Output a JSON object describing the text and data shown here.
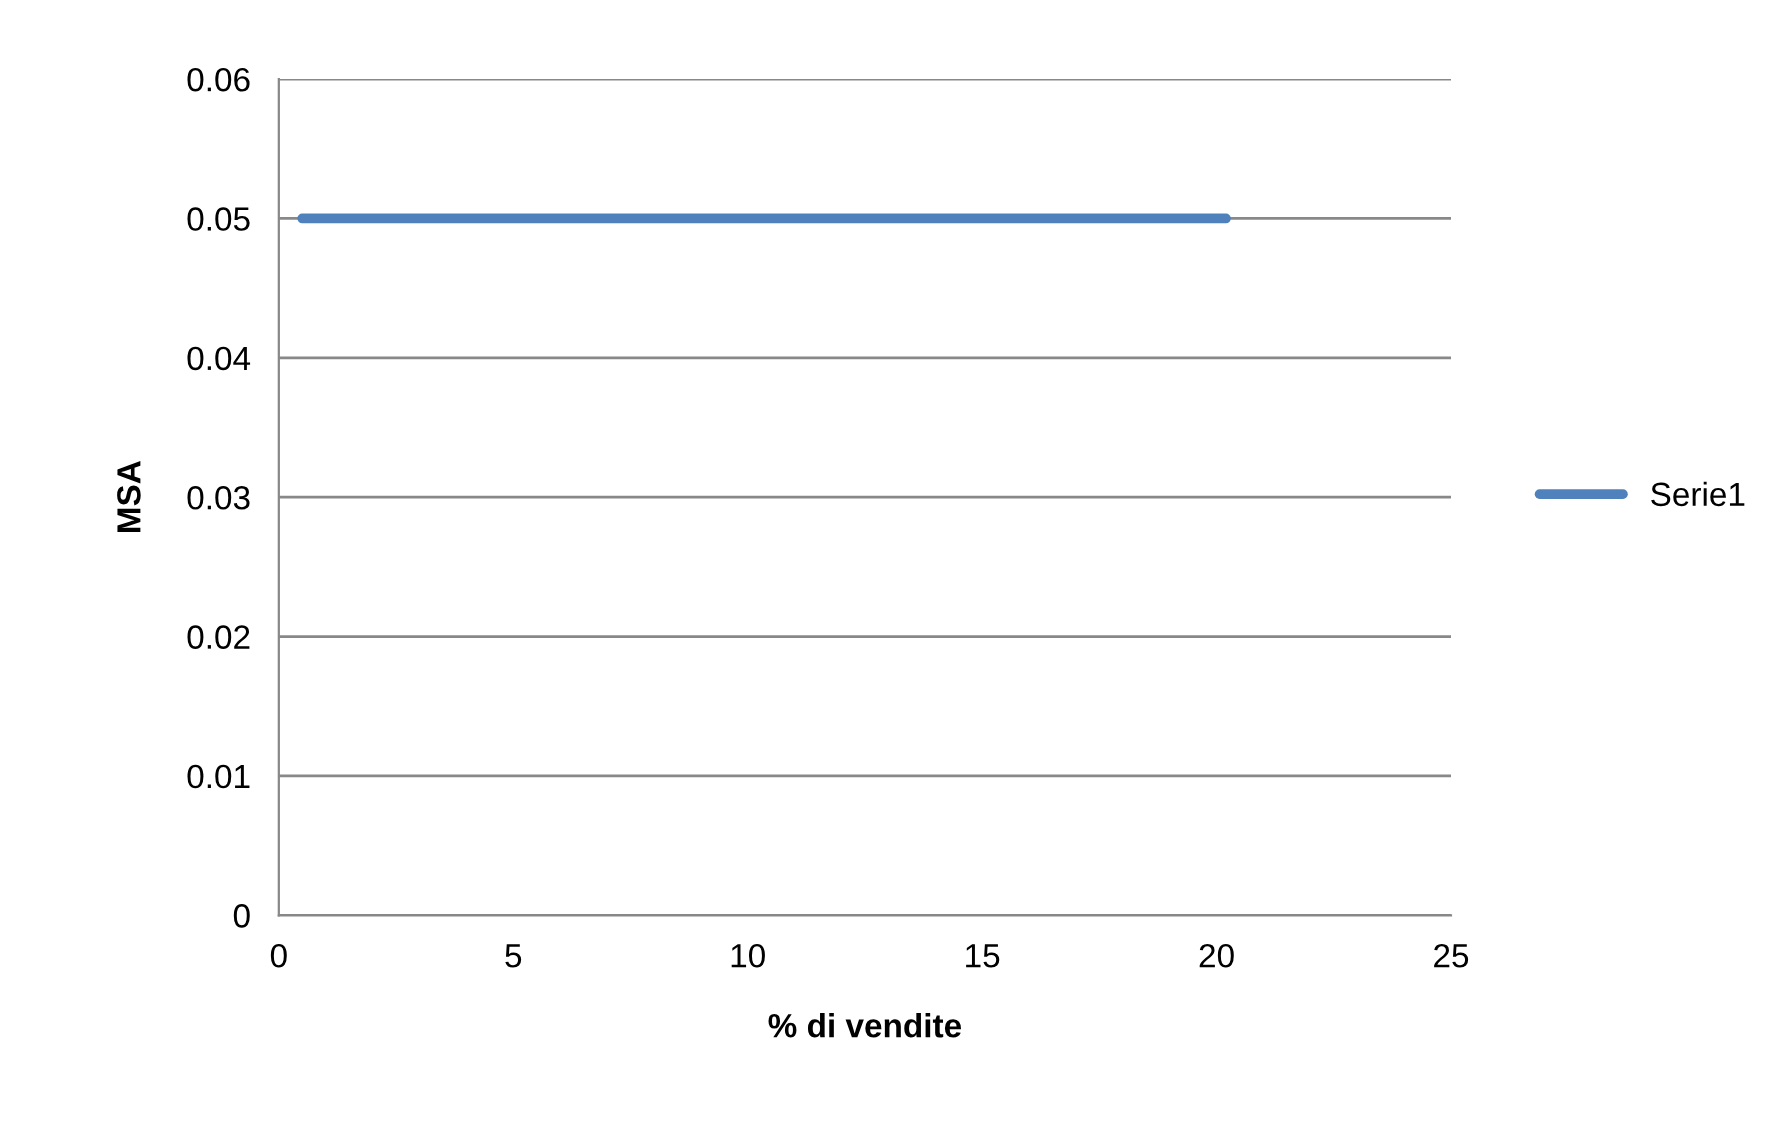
{
  "chart_data": {
    "type": "line",
    "xlabel": "% di vendite",
    "ylabel": "MSA",
    "series": [
      {
        "name": "Serie1",
        "color": "#4f81bd",
        "x": [
          0.5,
          20.2
        ],
        "values": [
          0.05,
          0.05
        ]
      }
    ],
    "xlim": [
      0,
      25
    ],
    "xticks": [
      0,
      5,
      10,
      15,
      20,
      25
    ],
    "ylim": [
      0,
      0.06
    ],
    "yticks": [
      0,
      0.01,
      0.02,
      0.03,
      0.04,
      0.05,
      0.06
    ],
    "grid": "y",
    "legend": "right",
    "marker": "none",
    "line_style": "solid"
  }
}
